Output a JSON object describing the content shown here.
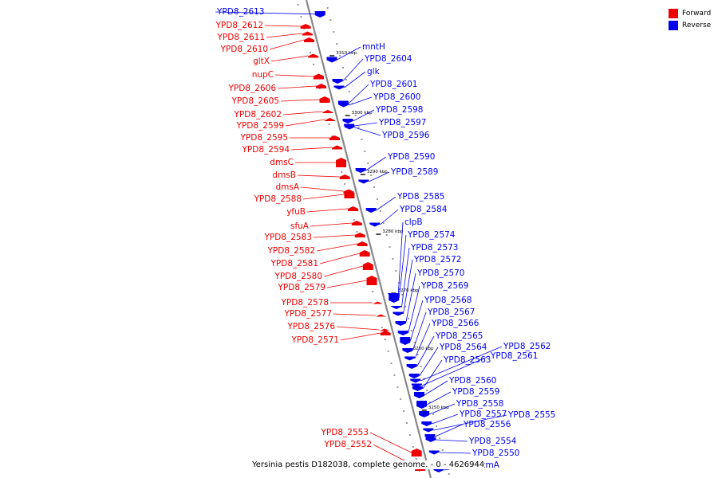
{
  "legend": {
    "forward_label": "Forward",
    "reverse_label": "Reverse",
    "forward_color": "#ee0000",
    "reverse_color": "#0000ee"
  },
  "caption": {
    "sequence": "Yersinia pestis D182038, complete genome.",
    "range_sep": " - ",
    "range_start": "0",
    "range_end": "4626944"
  },
  "scale_marks": [
    {
      "label": "3310 kbp"
    },
    {
      "label": "3300 kbp"
    },
    {
      "label": "3290 kbp"
    },
    {
      "label": "3280 kbp"
    },
    {
      "label": "3270 kbp"
    },
    {
      "label": "3260 kbp"
    },
    {
      "label": "3250 kbp"
    }
  ],
  "forward_genes": [
    "YPD8_2612",
    "YPD8_2611",
    "YPD8_2610",
    "gltX",
    "nupC",
    "YPD8_2606",
    "YPD8_2605",
    "YPD8_2602",
    "YPD8_2599",
    "YPD8_2595",
    "YPD8_2594",
    "dmsC",
    "dmsB",
    "dmsA",
    "YPD8_2588",
    "yfuB",
    "sfuA",
    "YPD8_2583",
    "YPD8_2582",
    "YPD8_2581",
    "YPD8_2580",
    "YPD8_2579",
    "YPD8_2578",
    "YPD8_2577",
    "YPD8_2576",
    "YPD8_2571",
    "YPD8_2553",
    "YPD8_2552"
  ],
  "reverse_genes": [
    "YPD8_2613",
    "mntH",
    "YPD8_2604",
    "glk",
    "YPD8_2601",
    "YPD8_2600",
    "YPD8_2598",
    "YPD8_2597",
    "YPD8_2596",
    "YPD8_2590",
    "YPD8_2589",
    "YPD8_2585",
    "YPD8_2584",
    "clpB",
    "YPD8_2574",
    "YPD8_2573",
    "YPD8_2572",
    "YPD8_2570",
    "YPD8_2569",
    "YPD8_2568",
    "YPD8_2567",
    "YPD8_2566",
    "YPD8_2565",
    "YPD8_2564",
    "YPD8_2562",
    "YPD8_2561",
    "YPD8_2563",
    "YPD8_2560",
    "YPD8_2559",
    "YPD8_2558",
    "YPD8_2557",
    "YPD8_2555",
    "YPD8_2556",
    "YPD8_2554",
    "YPD8_2550",
    "ccmA"
  ]
}
